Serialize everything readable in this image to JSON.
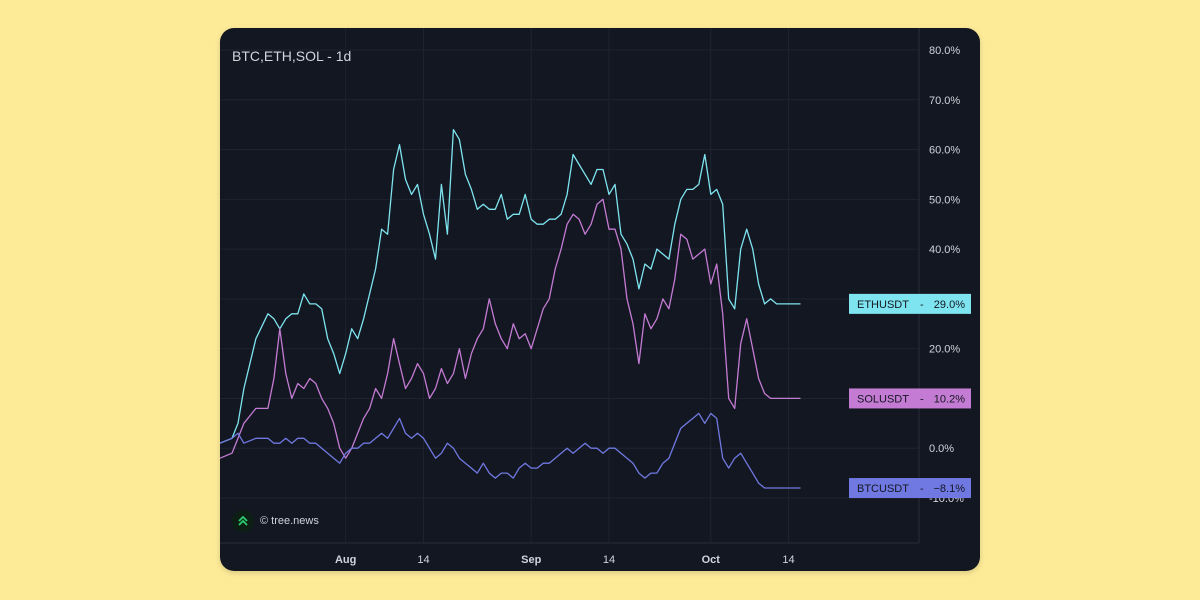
{
  "chart_data": {
    "type": "line",
    "title": "BTC,ETH,SOL - 1d",
    "watermark": "© tree.news",
    "yticks": [
      "80.0%",
      "70.0%",
      "60.0%",
      "50.0%",
      "40.0%",
      "30.0%",
      "20.0%",
      "10.0%",
      "0.0%",
      "-10.0%"
    ],
    "ytick_values": [
      80,
      70,
      60,
      50,
      40,
      30,
      20,
      10,
      0,
      -10
    ],
    "ylim": [
      -10,
      80
    ],
    "xlim": [
      0,
      132
    ],
    "xticks": [
      {
        "label": "Aug",
        "x": 21,
        "major": true
      },
      {
        "label": "14",
        "x": 34,
        "major": false
      },
      {
        "label": "Sep",
        "x": 52,
        "major": true
      },
      {
        "label": "14",
        "x": 65,
        "major": false
      },
      {
        "label": "Oct",
        "x": 82,
        "major": true
      },
      {
        "label": "14",
        "x": 95,
        "major": false
      }
    ],
    "grid": true,
    "series": [
      {
        "name": "ETHUSDT",
        "color": "#7ee4ef",
        "last_label": "29.0%",
        "x": [
          0,
          2,
          3,
          4,
          6,
          8,
          9,
          10,
          11,
          12,
          13,
          14,
          15,
          16,
          17,
          18,
          19,
          20,
          21,
          22,
          23,
          24,
          25,
          26,
          27,
          28,
          29,
          30,
          31,
          32,
          33,
          34,
          35,
          36,
          37,
          38,
          39,
          40,
          41,
          42,
          43,
          44,
          45,
          46,
          47,
          48,
          49,
          50,
          51,
          52,
          53,
          54,
          55,
          56,
          57,
          58,
          59,
          60,
          61,
          62,
          63,
          64,
          65,
          66,
          67,
          68,
          69,
          70,
          71,
          72,
          73,
          74,
          75,
          76,
          77,
          78,
          79,
          80,
          81,
          82,
          83,
          84,
          85,
          86,
          87,
          88,
          89,
          90,
          91,
          92,
          93,
          94,
          95,
          96,
          97
        ],
        "values": [
          1,
          2,
          5,
          12,
          22,
          27,
          26,
          24,
          26,
          27,
          27,
          31,
          29,
          29,
          28,
          22,
          19,
          15,
          19,
          24,
          22,
          26,
          31,
          36,
          44,
          43,
          56,
          61,
          54,
          51,
          53,
          47,
          43,
          38,
          53,
          43,
          64,
          62,
          55,
          52,
          48,
          49,
          48,
          48,
          51,
          46,
          47,
          47,
          51,
          46,
          45,
          45,
          46,
          46,
          47,
          51,
          59,
          57,
          55,
          53,
          56,
          56,
          51,
          53,
          43,
          41,
          38,
          32,
          37,
          36,
          40,
          39,
          38,
          45,
          50,
          52,
          52,
          53,
          59,
          51,
          52,
          49,
          30,
          28,
          40,
          44,
          40,
          33,
          29,
          30,
          29,
          29,
          29,
          29,
          29
        ]
      },
      {
        "name": "SOLUSDT",
        "color": "#c47bd3",
        "last_label": "10.2%",
        "x": [
          0,
          2,
          3,
          4,
          6,
          8,
          9,
          10,
          11,
          12,
          13,
          14,
          15,
          16,
          17,
          18,
          19,
          20,
          21,
          22,
          23,
          24,
          25,
          26,
          27,
          28,
          29,
          30,
          31,
          32,
          33,
          34,
          35,
          36,
          37,
          38,
          39,
          40,
          41,
          42,
          43,
          44,
          45,
          46,
          47,
          48,
          49,
          50,
          51,
          52,
          53,
          54,
          55,
          56,
          57,
          58,
          59,
          60,
          61,
          62,
          63,
          64,
          65,
          66,
          67,
          68,
          69,
          70,
          71,
          72,
          73,
          74,
          75,
          76,
          77,
          78,
          79,
          80,
          81,
          82,
          83,
          84,
          85,
          86,
          87,
          88,
          89,
          90,
          91,
          92,
          93,
          94,
          95,
          96,
          97
        ],
        "values": [
          -2,
          -1,
          2,
          5,
          8,
          8,
          14,
          24,
          15,
          10,
          13,
          12,
          14,
          13,
          10,
          8,
          5,
          0,
          -2,
          0,
          3,
          6,
          8,
          12,
          10,
          15,
          22,
          17,
          12,
          14,
          17,
          15,
          10,
          12,
          16,
          13,
          15,
          20,
          14,
          19,
          22,
          24,
          30,
          25,
          22,
          20,
          25,
          22,
          23,
          20,
          24,
          28,
          30,
          36,
          40,
          45,
          47,
          46,
          43,
          45,
          49,
          50,
          44,
          44,
          40,
          30,
          25,
          17,
          27,
          24,
          26,
          30,
          28,
          34,
          43,
          42,
          38,
          39,
          40,
          33,
          37,
          27,
          10,
          8,
          21,
          26,
          20,
          14,
          11,
          10,
          10,
          10,
          10,
          10,
          10
        ]
      },
      {
        "name": "BTCUSDT",
        "color": "#7079e1",
        "last_label": "−8.1%",
        "x": [
          0,
          2,
          3,
          4,
          6,
          8,
          9,
          10,
          11,
          12,
          13,
          14,
          15,
          16,
          17,
          18,
          19,
          20,
          21,
          22,
          23,
          24,
          25,
          26,
          27,
          28,
          29,
          30,
          31,
          32,
          33,
          34,
          35,
          36,
          37,
          38,
          39,
          40,
          41,
          42,
          43,
          44,
          45,
          46,
          47,
          48,
          49,
          50,
          51,
          52,
          53,
          54,
          55,
          56,
          57,
          58,
          59,
          60,
          61,
          62,
          63,
          64,
          65,
          66,
          67,
          68,
          69,
          70,
          71,
          72,
          73,
          74,
          75,
          76,
          77,
          78,
          79,
          80,
          81,
          82,
          83,
          84,
          85,
          86,
          87,
          88,
          89,
          90,
          91,
          92,
          93,
          94,
          95,
          96,
          97
        ],
        "values": [
          1,
          2,
          3,
          1,
          2,
          2,
          1,
          1,
          2,
          1,
          2,
          2,
          1,
          1,
          0,
          -1,
          -2,
          -3,
          -1,
          0,
          0,
          1,
          1,
          2,
          3,
          2,
          4,
          6,
          3,
          2,
          3,
          2,
          0,
          -2,
          -1,
          1,
          0,
          -2,
          -3,
          -4,
          -5,
          -3,
          -5,
          -6,
          -5,
          -5,
          -6,
          -4,
          -3,
          -4,
          -4,
          -3,
          -3,
          -2,
          -1,
          0,
          -1,
          0,
          1,
          0,
          0,
          -1,
          0,
          0,
          -1,
          -2,
          -3,
          -5,
          -6,
          -5,
          -5,
          -3,
          -2,
          1,
          4,
          5,
          6,
          7,
          5,
          7,
          6,
          -2,
          -4,
          -2,
          -1,
          -3,
          -5,
          -7,
          -8,
          -8,
          -8,
          -8,
          -8,
          -8,
          -8
        ]
      }
    ]
  }
}
